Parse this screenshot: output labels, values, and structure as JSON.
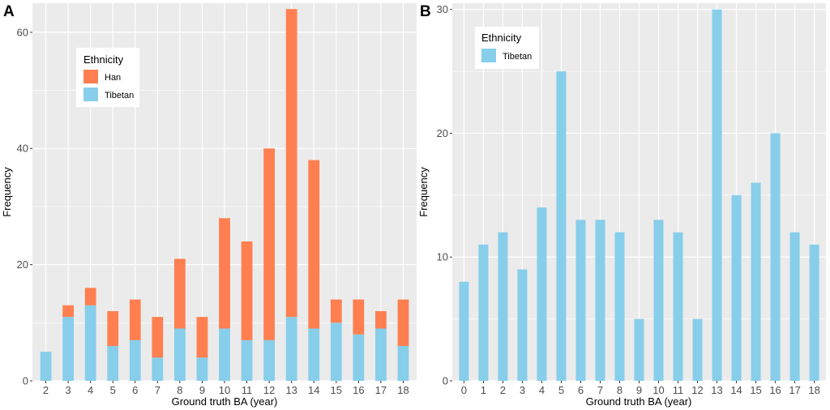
{
  "chart_data": [
    {
      "panel": "A",
      "type": "bar",
      "stacked": true,
      "categories": [
        "2",
        "3",
        "4",
        "5",
        "6",
        "7",
        "8",
        "9",
        "10",
        "11",
        "12",
        "13",
        "14",
        "15",
        "16",
        "17",
        "18"
      ],
      "series": [
        {
          "name": "Tibetan",
          "values": [
            5,
            11,
            13,
            6,
            7,
            4,
            9,
            4,
            9,
            7,
            7,
            11,
            9,
            10,
            8,
            9,
            6
          ]
        },
        {
          "name": "Han",
          "values": [
            0,
            2,
            3,
            6,
            7,
            7,
            12,
            7,
            19,
            17,
            33,
            53,
            29,
            4,
            6,
            3,
            8
          ]
        }
      ],
      "xlabel": "Ground truth BA (year)",
      "ylabel": "Frequency",
      "ylim": [
        0,
        65
      ],
      "yticks": [
        0,
        20,
        40,
        60
      ],
      "grid": true,
      "legend": {
        "title": "Ethnicity",
        "entries": [
          "Han",
          "Tibetan"
        ],
        "position": "top-left"
      }
    },
    {
      "panel": "B",
      "type": "bar",
      "stacked": false,
      "categories": [
        "0",
        "1",
        "2",
        "3",
        "4",
        "5",
        "6",
        "7",
        "8",
        "9",
        "10",
        "11",
        "12",
        "13",
        "14",
        "15",
        "16",
        "17",
        "18"
      ],
      "series": [
        {
          "name": "Tibetan",
          "values": [
            8,
            11,
            12,
            9,
            14,
            25,
            13,
            13,
            12,
            5,
            13,
            12,
            5,
            30,
            15,
            16,
            20,
            12,
            11
          ]
        }
      ],
      "xlabel": "Ground truth BA (year)",
      "ylabel": "Frequency",
      "ylim": [
        0,
        30.5
      ],
      "yticks": [
        0,
        10,
        20,
        30
      ],
      "grid": true,
      "legend": {
        "title": "Ethnicity",
        "entries": [
          "Tibetan"
        ],
        "position": "top-left"
      }
    }
  ],
  "colors": {
    "Han": "#FF7F50",
    "Tibetan": "#87CEEB",
    "panel_bg": "#EBEBEB",
    "grid": "#FFFFFF"
  }
}
